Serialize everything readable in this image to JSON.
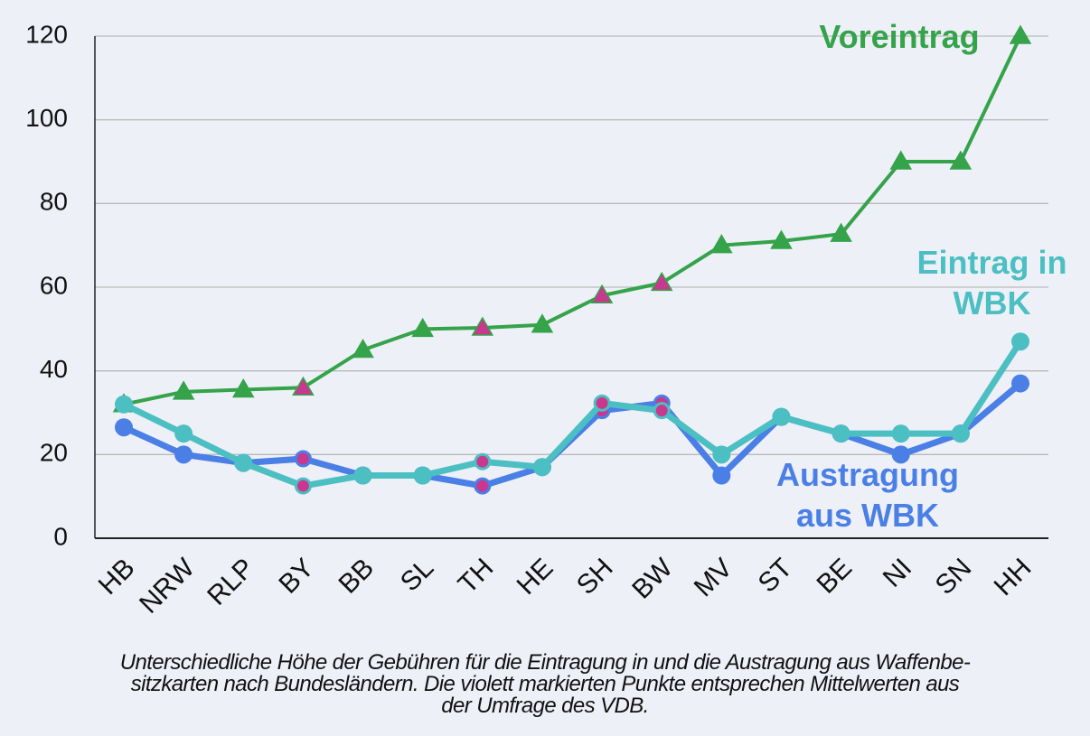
{
  "chart_data": {
    "type": "line",
    "categories": [
      "HB",
      "NRW",
      "RLP",
      "BY",
      "BB",
      "SL",
      "TH",
      "HE",
      "SH",
      "BW",
      "MV",
      "ST",
      "BE",
      "NI",
      "SN",
      "HH"
    ],
    "series": [
      {
        "name": "Voreintrag",
        "color": "#34a34a",
        "marker": "triangle",
        "highlight": [
          3,
          6,
          8,
          9
        ],
        "values": [
          32,
          35,
          35.5,
          36,
          45,
          50,
          50.3,
          51,
          58,
          61,
          70,
          71,
          72.7,
          90,
          90,
          120
        ]
      },
      {
        "name": "Austragung aus WBK",
        "color": "#4a7fe6",
        "marker": "circle",
        "highlight": [
          3,
          6,
          8,
          9
        ],
        "values": [
          26.5,
          20,
          18,
          19,
          15,
          15,
          12.5,
          17,
          30.5,
          32.3,
          15,
          29,
          25,
          20,
          25,
          37
        ]
      },
      {
        "name": "Eintrag in WBK",
        "color": "#4cbfc2",
        "marker": "circle",
        "highlight": [
          3,
          6,
          8,
          9
        ],
        "values": [
          32,
          25,
          18,
          12.5,
          15,
          15,
          18.3,
          17,
          32.3,
          30.5,
          20,
          29,
          25,
          25,
          25,
          47
        ]
      }
    ],
    "highlight_color": "#c8388e",
    "ylim": [
      0,
      120
    ],
    "yticks": [
      0,
      20,
      40,
      60,
      80,
      100,
      120
    ],
    "grid": true,
    "caption": [
      "Unterschiedliche Höhe der Gebühren für die Eintragung in und die Austragung aus Waffenbe-",
      "sitzkarten nach Bundesländern. Die violett markierten Punkte entsprechen Mittelwerten aus",
      "der Umfrage des VDB."
    ]
  }
}
